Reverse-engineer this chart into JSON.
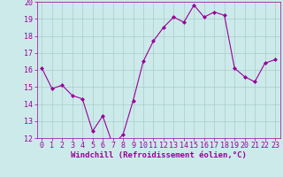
{
  "x": [
    0,
    1,
    2,
    3,
    4,
    5,
    6,
    7,
    8,
    9,
    10,
    11,
    12,
    13,
    14,
    15,
    16,
    17,
    18,
    19,
    20,
    21,
    22,
    23
  ],
  "y": [
    16.1,
    14.9,
    15.1,
    14.5,
    14.3,
    12.4,
    13.3,
    11.6,
    12.2,
    14.2,
    16.5,
    17.7,
    18.5,
    19.1,
    18.8,
    19.8,
    19.1,
    19.4,
    19.2,
    16.1,
    15.6,
    15.3,
    16.4,
    16.6
  ],
  "line_color": "#990099",
  "marker": "D",
  "marker_size": 2.0,
  "bg_color": "#cceaea",
  "grid_color": "#aacccc",
  "xlabel": "Windchill (Refroidissement éolien,°C)",
  "xlabel_fontsize": 6.5,
  "tick_fontsize": 6,
  "ylim": [
    12,
    20
  ],
  "xlim": [
    -0.5,
    23.5
  ],
  "yticks": [
    12,
    13,
    14,
    15,
    16,
    17,
    18,
    19,
    20
  ],
  "xticks": [
    0,
    1,
    2,
    3,
    4,
    5,
    6,
    7,
    8,
    9,
    10,
    11,
    12,
    13,
    14,
    15,
    16,
    17,
    18,
    19,
    20,
    21,
    22,
    23
  ]
}
